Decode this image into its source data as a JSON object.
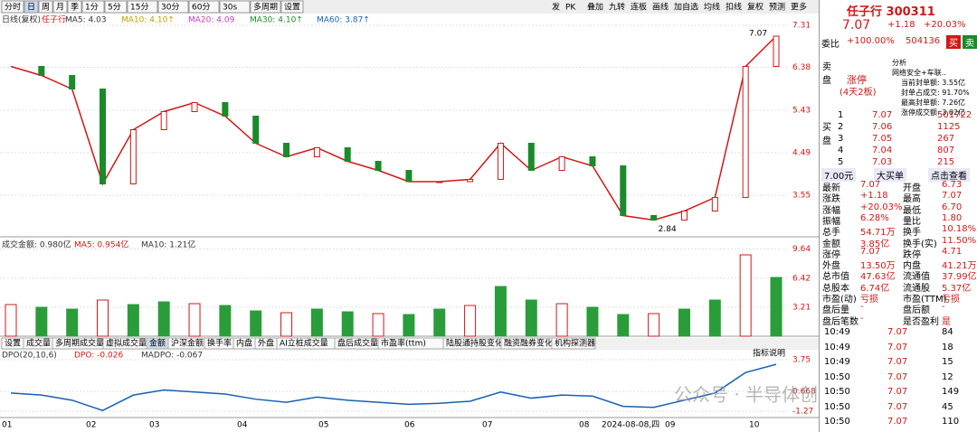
{
  "toolbar": {
    "tabs": [
      "分时",
      "日",
      "周",
      "月",
      "季",
      "1分",
      "5分",
      "15分",
      "30分",
      "60分",
      "30s",
      "多周期",
      "设置"
    ],
    "buttons": [
      "发",
      "PK",
      "叠加",
      "九转",
      "连板",
      "画线",
      "加自选",
      "均线",
      "扣线",
      "复权",
      "预测",
      "更多"
    ]
  },
  "chart_data": [
    {
      "type": "candle-line",
      "legend": [
        "日线(复权)",
        "任子行",
        "MA5: 4.03",
        "MA10: 4.10↑",
        "MA20: 4.09",
        "MA30: 4.10↑",
        "MA60: 3.87↑"
      ],
      "color": "#d01818",
      "values": [
        6.4,
        6.2,
        5.9,
        3.8,
        5.0,
        5.4,
        5.6,
        5.3,
        4.7,
        4.4,
        4.6,
        4.3,
        4.1,
        3.85,
        3.85,
        3.9,
        4.7,
        4.1,
        4.4,
        4.2,
        3.1,
        3.0,
        3.2,
        3.5,
        6.4,
        7.07
      ],
      "ylim": [
        2.63,
        7.51
      ],
      "yticks": [
        3.55,
        4.49,
        5.43,
        6.38,
        7.31
      ],
      "annotations": [
        "7.07",
        "2.84"
      ]
    },
    {
      "type": "bar",
      "legend": [
        "成交金额: 0.980亿",
        "MA5: 0.954亿",
        "MA10: 1.21亿"
      ],
      "color": "#2a9d3a",
      "values": [
        3.5,
        3.2,
        3.0,
        4.0,
        3.5,
        3.8,
        3.6,
        3.4,
        2.8,
        2.6,
        3.0,
        2.7,
        2.5,
        2.4,
        3.0,
        3.4,
        5.5,
        4.0,
        3.6,
        3.2,
        2.4,
        2.5,
        3.0,
        4.0,
        9.0,
        6.5
      ],
      "ylim": [
        0,
        10.4
      ],
      "yticks": [
        3.21,
        6.42,
        9.64
      ]
    },
    {
      "type": "line",
      "legend": [
        "DPO(20,10,6)",
        "DPO: -0.026",
        "MADPO: -0.067"
      ],
      "color": "#1a5fb4",
      "values": [
        0.5,
        0.3,
        -0.2,
        -1.2,
        0.3,
        0.8,
        0.6,
        0.4,
        -0.1,
        -0.4,
        0.1,
        -0.2,
        -0.4,
        -0.6,
        -0.5,
        -0.3,
        0.6,
        0,
        0.3,
        0.2,
        -0.8,
        -0.9,
        -0.2,
        0.5,
        2.5,
        3.3
      ],
      "ylim": [
        -1.89,
        4.28
      ],
      "yticks": [
        3.75,
        0.668,
        -1.27
      ]
    }
  ],
  "indicator_tabs": [
    "设置",
    "成交量",
    "多周期成交量",
    "虚拟成交量",
    "金额",
    "沪深金额",
    "换手率",
    "内盘",
    "外盘",
    "AI立桩成交量",
    "盘后成交量",
    "市盈率(ttm)",
    "陆股通持股变化",
    "融资融券变化",
    "机构探测器"
  ],
  "indicator_help": "指标说明",
  "x_labels": [
    "01",
    "02",
    "03",
    "04",
    "05",
    "06",
    "07",
    "08",
    "2024-08-08,四",
    "09",
    "10"
  ],
  "watermark": "公众号 · 半导体创芯网",
  "quote": {
    "name": "任子行 300311",
    "price": "7.07",
    "change": "+1.18",
    "pct": "+20.03%",
    "ratio_label": "委比",
    "ratio": "+100.00%",
    "ratio_vol": "504136",
    "buy": "买",
    "sell": "卖",
    "sell_label": "卖盘",
    "limit": "涨停",
    "limit_days": "(4天2板)",
    "analysis": [
      "分析",
      "网络安全+车联..",
      "当前封单额: 3.55亿",
      "封单占成交: 91.70%",
      "最高封单额: 7.26亿",
      "涨停成交额: 3.02亿"
    ],
    "buy_label": "买盘",
    "bids": [
      [
        "1",
        "7.07",
        "501722"
      ],
      [
        "2",
        "7.06",
        "1125"
      ],
      [
        "3",
        "7.05",
        "267"
      ],
      [
        "4",
        "7.04",
        "807"
      ],
      [
        "5",
        "7.03",
        "215"
      ]
    ],
    "tabs": [
      "7.00元",
      "大买单",
      "点击查看"
    ],
    "stats": [
      [
        "最新",
        "7.07",
        "开盘",
        "6.73"
      ],
      [
        "涨跌",
        "+1.18",
        "最高",
        "7.07"
      ],
      [
        "涨幅",
        "+20.03%",
        "最低",
        "6.70"
      ],
      [
        "振幅",
        "6.28%",
        "量比",
        "1.80"
      ],
      [
        "总手",
        "54.71万",
        "换手",
        "10.18%"
      ],
      [
        "金额",
        "3.85亿",
        "换手(实)",
        "11.50%"
      ],
      [
        "涨停",
        "7.07",
        "跌停",
        "4.71"
      ],
      [
        "外盘",
        "13.50万",
        "内盘",
        "41.21万"
      ],
      [
        "总市值",
        "47.63亿",
        "流通值",
        "37.99亿"
      ],
      [
        "总股本",
        "6.74亿",
        "流通股",
        "5.37亿"
      ],
      [
        "市盈(动)",
        "亏损",
        "市盈(TTM)",
        "亏损"
      ],
      [
        "盘后量",
        "-",
        "盘后额",
        "-"
      ],
      [
        "盘后笔数",
        "-",
        "是否盈利",
        "是"
      ]
    ],
    "ticks": [
      [
        "10:49",
        "7.07",
        "84"
      ],
      [
        "10:49",
        "7.07",
        "18"
      ],
      [
        "10:49",
        "7.07",
        "15"
      ],
      [
        "10:50",
        "7.07",
        "12"
      ],
      [
        "10:50",
        "7.07",
        "149"
      ],
      [
        "10:50",
        "7.07",
        "45"
      ],
      [
        "10:50",
        "7.07",
        "110"
      ]
    ]
  }
}
